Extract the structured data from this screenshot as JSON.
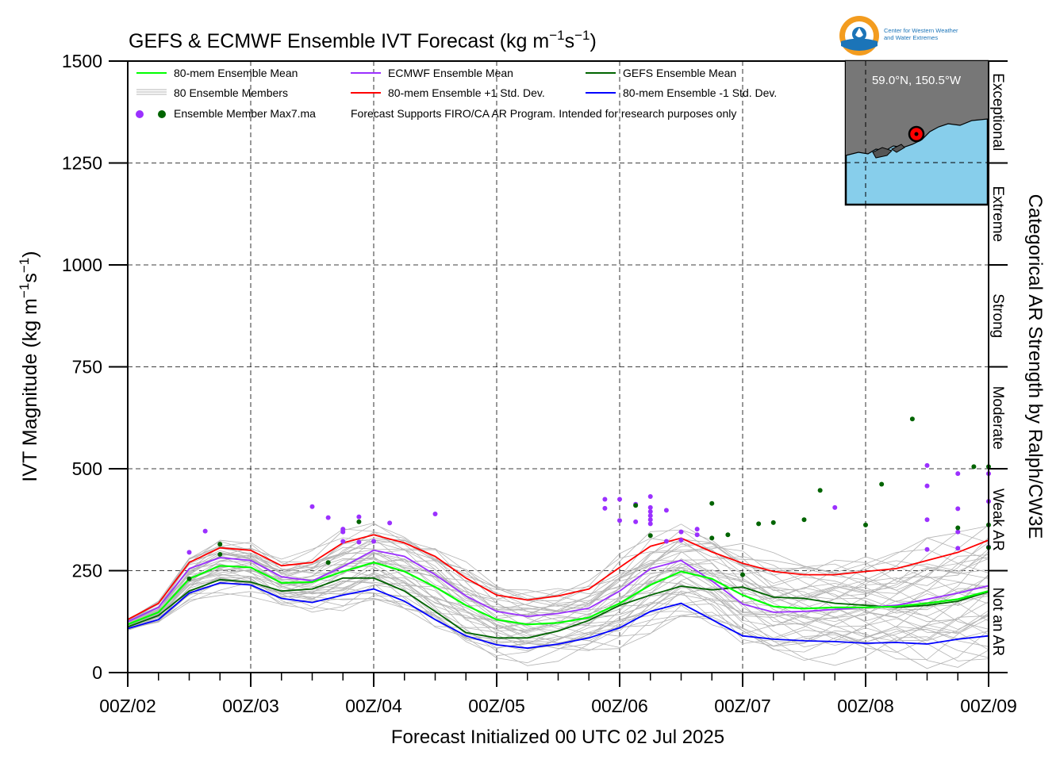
{
  "colors": {
    "mean80": "#00ff00",
    "ecmwf": "#9b30ff",
    "gefs": "#006400",
    "plus_sd": "#ff0000",
    "minus_sd": "#0000ff",
    "members": "#b4b4b4",
    "map_water": "#87ceeb",
    "map_land": "#777777",
    "logo_orange": "#f39c1f",
    "logo_blue": "#1b74b8"
  },
  "logo": {
    "line1": "Center for Western Weather",
    "line2": "and Water Extremes"
  },
  "inset_map": {
    "location_label": "59.0°N, 150.5°W"
  },
  "chart_data": {
    "type": "line",
    "title": "GEFS & ECMWF Ensemble IVT Forecast (kg m",
    "title_unit_tail": "s",
    "title_sup1": "−1",
    "title_sup2": "−1",
    "title_close": ")",
    "xlabel": "Forecast Initialized 00 UTC 02 Jul 2025",
    "ylabel_main": "IVT Magnitude (kg m",
    "ylabel_s": "s",
    "ylabel_sup": "−1",
    "ylabel_close": ")",
    "right_axis_label": "Categorical AR Strength by Ralph/CW3E",
    "ylim": [
      0,
      1500
    ],
    "y_ticks": [
      "0",
      "250",
      "500",
      "750",
      "1000",
      "1250",
      "1500"
    ],
    "x_tick_labels": [
      "00Z/02",
      "00Z/03",
      "00Z/04",
      "00Z/05",
      "00Z/06",
      "00Z/07",
      "00Z/08",
      "00Z/09"
    ],
    "grid": true,
    "legend_position": "top-left",
    "legend": {
      "mean80": "80-mem Ensemble Mean",
      "ecmwf": "ECMWF Ensemble Mean",
      "gefs": "GEFS Ensemble Mean",
      "members": "80 Ensemble Members",
      "plus_sd": "80-mem Ensemble +1 Std. Dev.",
      "minus_sd": "80-mem Ensemble -1 Std. Dev.",
      "max_dots": "Ensemble Member Max7.ma",
      "note": "Forecast Supports FIRO/CA AR Program. Intended for research purposes only"
    },
    "categories": [
      {
        "label": "Not an AR",
        "from": 0,
        "to": 250
      },
      {
        "label": "Weak AR",
        "from": 250,
        "to": 500
      },
      {
        "label": "Moderate",
        "from": 500,
        "to": 750
      },
      {
        "label": "Strong",
        "from": 750,
        "to": 1000
      },
      {
        "label": "Extreme",
        "from": 1000,
        "to": 1250
      },
      {
        "label": "Exceptional",
        "from": 1250,
        "to": 1500
      }
    ],
    "x_unit": "days after 00Z/02",
    "series": [
      {
        "name": "80-mem Ensemble Mean",
        "color_key": "mean80",
        "x": [
          0,
          0.25,
          0.5,
          0.75,
          1,
          1.25,
          1.5,
          1.75,
          2,
          2.25,
          2.5,
          2.75,
          3,
          3.25,
          3.5,
          3.75,
          4,
          4.25,
          4.5,
          4.75,
          5,
          5.25,
          5.5,
          5.75,
          6,
          6.25,
          6.5,
          6.75,
          7
        ],
        "y": [
          118,
          148,
          230,
          262,
          258,
          220,
          222,
          248,
          270,
          248,
          210,
          165,
          130,
          118,
          122,
          135,
          170,
          215,
          248,
          230,
          190,
          162,
          157,
          160,
          160,
          162,
          170,
          180,
          200
        ]
      },
      {
        "name": "ECMWF Ensemble Mean",
        "color_key": "ecmwf",
        "x": [
          0,
          0.25,
          0.5,
          0.75,
          1,
          1.25,
          1.5,
          1.75,
          2,
          2.25,
          2.5,
          2.75,
          3,
          3.25,
          3.5,
          3.75,
          4,
          4.25,
          4.5,
          4.75,
          5,
          5.25,
          5.5,
          5.75,
          6,
          6.25,
          6.5,
          6.75,
          7
        ],
        "y": [
          125,
          160,
          255,
          282,
          275,
          235,
          225,
          260,
          300,
          285,
          240,
          188,
          150,
          138,
          145,
          158,
          200,
          255,
          275,
          225,
          168,
          148,
          150,
          155,
          160,
          165,
          180,
          195,
          213
        ]
      },
      {
        "name": "GEFS Ensemble Mean",
        "color_key": "gefs",
        "x": [
          0,
          0.25,
          0.5,
          0.75,
          1,
          1.25,
          1.5,
          1.75,
          2,
          2.25,
          2.5,
          2.75,
          3,
          3.25,
          3.5,
          3.75,
          4,
          4.25,
          4.5,
          4.75,
          5,
          5.25,
          5.5,
          5.75,
          6,
          6.25,
          6.5,
          6.75,
          7
        ],
        "y": [
          112,
          140,
          200,
          228,
          222,
          200,
          205,
          232,
          232,
          200,
          150,
          98,
          85,
          85,
          102,
          128,
          165,
          190,
          212,
          203,
          210,
          185,
          182,
          170,
          165,
          160,
          165,
          175,
          198
        ]
      },
      {
        "name": "80-mem Ensemble +1 Std. Dev.",
        "color_key": "plus_sd",
        "x": [
          0,
          0.25,
          0.5,
          0.75,
          1,
          1.25,
          1.5,
          1.75,
          2,
          2.25,
          2.5,
          2.75,
          3,
          3.25,
          3.5,
          3.75,
          4,
          4.25,
          4.5,
          4.75,
          5,
          5.25,
          5.5,
          5.75,
          6,
          6.25,
          6.5,
          6.75,
          7
        ],
        "y": [
          130,
          170,
          270,
          306,
          300,
          262,
          270,
          318,
          338,
          318,
          285,
          232,
          190,
          178,
          188,
          205,
          258,
          310,
          330,
          296,
          268,
          248,
          240,
          240,
          248,
          255,
          275,
          295,
          325
        ]
      },
      {
        "name": "80-mem Ensemble -1 Std. Dev.",
        "color_key": "minus_sd",
        "x": [
          0,
          0.25,
          0.5,
          0.75,
          1,
          1.25,
          1.5,
          1.75,
          2,
          2.25,
          2.5,
          2.75,
          3,
          3.25,
          3.5,
          3.75,
          4,
          4.25,
          4.5,
          4.75,
          5,
          5.25,
          5.5,
          5.75,
          6,
          6.25,
          6.5,
          6.75,
          7
        ],
        "y": [
          108,
          130,
          195,
          220,
          215,
          182,
          172,
          190,
          205,
          175,
          130,
          90,
          68,
          60,
          70,
          85,
          110,
          150,
          170,
          130,
          90,
          82,
          78,
          76,
          72,
          74,
          70,
          82,
          90
        ]
      }
    ],
    "ecmwf_max_points": [
      {
        "x": 0.5,
        "y": 295
      },
      {
        "x": 0.63,
        "y": 347
      },
      {
        "x": 1.5,
        "y": 407
      },
      {
        "x": 1.63,
        "y": 380
      },
      {
        "x": 1.75,
        "y": 352
      },
      {
        "x": 1.75,
        "y": 345
      },
      {
        "x": 1.75,
        "y": 322
      },
      {
        "x": 1.88,
        "y": 382
      },
      {
        "x": 1.88,
        "y": 320
      },
      {
        "x": 2.0,
        "y": 322
      },
      {
        "x": 2.13,
        "y": 367
      },
      {
        "x": 2.5,
        "y": 389
      },
      {
        "x": 3.88,
        "y": 425
      },
      {
        "x": 3.88,
        "y": 403
      },
      {
        "x": 4.0,
        "y": 425
      },
      {
        "x": 4.0,
        "y": 373
      },
      {
        "x": 4.13,
        "y": 413
      },
      {
        "x": 4.13,
        "y": 370
      },
      {
        "x": 4.25,
        "y": 432
      },
      {
        "x": 4.25,
        "y": 405
      },
      {
        "x": 4.25,
        "y": 395
      },
      {
        "x": 4.25,
        "y": 385
      },
      {
        "x": 4.25,
        "y": 375
      },
      {
        "x": 4.25,
        "y": 365
      },
      {
        "x": 4.38,
        "y": 398
      },
      {
        "x": 4.38,
        "y": 322
      },
      {
        "x": 4.5,
        "y": 345
      },
      {
        "x": 4.5,
        "y": 325
      },
      {
        "x": 4.63,
        "y": 352
      },
      {
        "x": 4.63,
        "y": 338
      },
      {
        "x": 5.75,
        "y": 405
      },
      {
        "x": 6.5,
        "y": 508
      },
      {
        "x": 6.5,
        "y": 458
      },
      {
        "x": 6.5,
        "y": 375
      },
      {
        "x": 6.5,
        "y": 302
      },
      {
        "x": 6.75,
        "y": 488
      },
      {
        "x": 6.75,
        "y": 402
      },
      {
        "x": 6.75,
        "y": 345
      },
      {
        "x": 6.75,
        "y": 305
      },
      {
        "x": 7.0,
        "y": 488
      },
      {
        "x": 7.0,
        "y": 420
      },
      {
        "x": 7.0,
        "y": 308
      }
    ],
    "gefs_max_points": [
      {
        "x": 0.5,
        "y": 230
      },
      {
        "x": 0.75,
        "y": 315
      },
      {
        "x": 0.75,
        "y": 290
      },
      {
        "x": 1.63,
        "y": 270
      },
      {
        "x": 1.88,
        "y": 370
      },
      {
        "x": 4.13,
        "y": 410
      },
      {
        "x": 4.25,
        "y": 336
      },
      {
        "x": 4.75,
        "y": 415
      },
      {
        "x": 4.75,
        "y": 330
      },
      {
        "x": 4.88,
        "y": 338
      },
      {
        "x": 5.0,
        "y": 240
      },
      {
        "x": 5.13,
        "y": 365
      },
      {
        "x": 5.25,
        "y": 368
      },
      {
        "x": 5.5,
        "y": 375
      },
      {
        "x": 5.63,
        "y": 447
      },
      {
        "x": 6.0,
        "y": 362
      },
      {
        "x": 6.13,
        "y": 462
      },
      {
        "x": 6.38,
        "y": 622
      },
      {
        "x": 6.88,
        "y": 505
      },
      {
        "x": 6.75,
        "y": 355
      },
      {
        "x": 7.0,
        "y": 505
      },
      {
        "x": 7.0,
        "y": 362
      },
      {
        "x": 7.0,
        "y": 307
      }
    ]
  }
}
